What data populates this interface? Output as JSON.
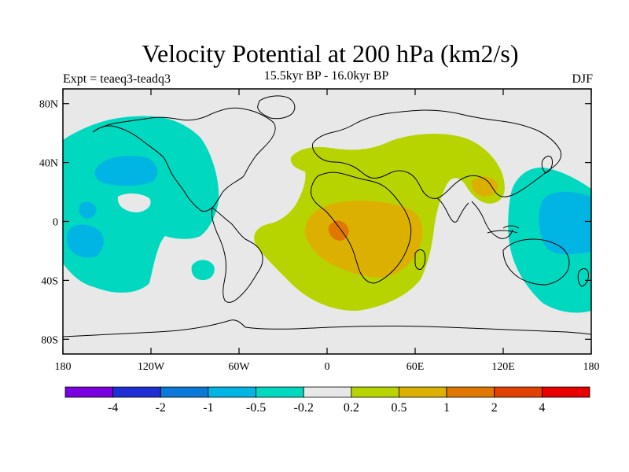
{
  "title": "Velocity Potential at 200 hPa (km2/s)",
  "subtitle": "15.5kyr BP - 16.0kyr BP",
  "experiment": "Expt = teaeq3-teadq3",
  "season": "DJF",
  "map": {
    "lat_ticks": [
      "80N",
      "40N",
      "0",
      "40S",
      "80S"
    ],
    "lon_ticks": [
      "180",
      "120W",
      "60W",
      "0",
      "60E",
      "120E",
      "180"
    ],
    "background_color": "#e8e8e8",
    "coast_color": "#000000"
  },
  "colorbar": {
    "colors": [
      "#7b00e0",
      "#1f2fd6",
      "#0a78d8",
      "#00b4e4",
      "#00d8c0",
      "#e8e8e8",
      "#b8d400",
      "#dcb000",
      "#e07800",
      "#e04000",
      "#e80000"
    ],
    "labels": [
      "-4",
      "-2",
      "-1",
      "-0.5",
      "-0.2",
      "0.2",
      "0.5",
      "1",
      "2",
      "4"
    ]
  },
  "chart_data": {
    "type": "heatmap",
    "title": "Velocity Potential at 200 hPa (km2/s)",
    "subtitle": "15.5kyr BP - 16.0kyr BP",
    "levels": [
      -4,
      -2,
      -1,
      -0.5,
      -0.2,
      0.2,
      0.5,
      1,
      2,
      4
    ],
    "lon_range": [
      -180,
      180
    ],
    "lat_range": [
      -90,
      90
    ],
    "regions": [
      {
        "name": "north-pacific-negative",
        "level": "-0.5",
        "color": "#00d8c0",
        "lon_min": -180,
        "lon_max": -120,
        "lat_min": -50,
        "lat_max": 70
      },
      {
        "name": "north-pacific-core",
        "level": "-1",
        "color": "#00b4e4",
        "lon_min": -165,
        "lon_max": -125,
        "lat_min": 20,
        "lat_max": 50
      },
      {
        "name": "west-pacific-negative",
        "level": "-0.5",
        "color": "#00d8c0",
        "lon_min": 125,
        "lon_max": 180,
        "lat_min": -60,
        "lat_max": 35
      },
      {
        "name": "west-pacific-core",
        "level": "-1",
        "color": "#00b4e4",
        "lon_min": 135,
        "lon_max": 180,
        "lat_min": -30,
        "lat_max": 20
      },
      {
        "name": "africa-eurasia-positive",
        "level": "0.5",
        "color": "#b8d400",
        "lon_min": -40,
        "lon_max": 120,
        "lat_min": -60,
        "lat_max": 60
      },
      {
        "name": "africa-core",
        "level": "1",
        "color": "#dcb000",
        "lon_min": -5,
        "lon_max": 50,
        "lat_min": -40,
        "lat_max": 15
      },
      {
        "name": "africa-max",
        "level": "2",
        "color": "#e07800",
        "lon_min": 2,
        "lon_max": 12,
        "lat_min": -12,
        "lat_max": 0
      }
    ]
  }
}
